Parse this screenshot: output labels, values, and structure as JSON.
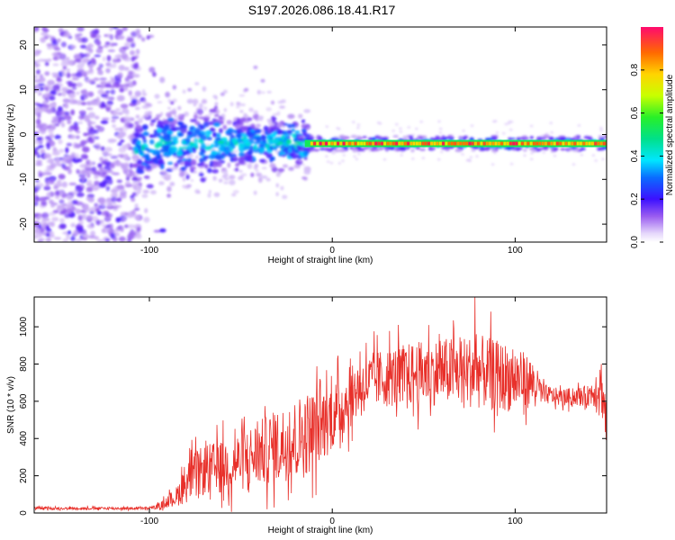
{
  "title": "S197.2026.086.18.41.R17",
  "colors": {
    "snr_line": "#e8302a",
    "axis": "#000000",
    "spectrogram_low": "#d9c6f6",
    "spectrogram_high": "#ff0a5a"
  },
  "chart_data": [
    {
      "type": "heatmap",
      "title": "S197.2026.086.18.41.R17",
      "xlabel": "Height of straight line (km)",
      "ylabel": "Frequency (Hz)",
      "xlim": [
        -163,
        150
      ],
      "ylim": [
        -24,
        24
      ],
      "xticks": [
        -100,
        0,
        100
      ],
      "yticks": [
        -20,
        -10,
        0,
        10,
        20
      ],
      "colorbar": {
        "label": "Normalized spectral amplitude",
        "range": [
          0,
          1
        ],
        "ticks": [
          "0.0",
          "0.2",
          "0.4",
          "0.6",
          "0.8"
        ],
        "tick_values": [
          0.0,
          0.2,
          0.4,
          0.6,
          0.8
        ]
      },
      "description_regions": [
        {
          "x": [
            -163,
            -105
          ],
          "freq": [
            -24,
            24
          ],
          "amplitude": 0.15,
          "pattern": "scattered noise"
        },
        {
          "x": [
            -105,
            -15
          ],
          "freq": [
            -12,
            7
          ],
          "amplitude": 0.4,
          "pattern": "broadening tone near -2 Hz"
        },
        {
          "x": [
            -15,
            150
          ],
          "freq": [
            -2.5,
            -1.5
          ],
          "amplitude": 0.95,
          "pattern": "narrow carrier tone"
        }
      ],
      "carrier_line_hz": -2
    },
    {
      "type": "line",
      "xlabel": "Height of straight line (km)",
      "ylabel": "SNR (10 * v/v)",
      "xlim": [
        -163,
        150
      ],
      "ylim": [
        0,
        1160
      ],
      "xticks": [
        -100,
        0,
        100
      ],
      "yticks": [
        0,
        200,
        400,
        600,
        800,
        1000
      ],
      "series": [
        {
          "name": "SNR",
          "envelope_x": [
            -163,
            -100,
            -95,
            -85,
            -80,
            -70,
            -60,
            -50,
            -40,
            -30,
            -20,
            -15,
            -10,
            -5,
            0,
            10,
            15,
            25,
            40,
            60,
            80,
            100,
            110,
            115,
            125,
            140,
            147,
            150
          ],
          "envelope_y": [
            25,
            25,
            35,
            90,
            170,
            230,
            250,
            280,
            320,
            360,
            400,
            420,
            450,
            480,
            520,
            620,
            680,
            720,
            740,
            760,
            760,
            720,
            700,
            640,
            620,
            630,
            700,
            480
          ],
          "spread_y": [
            8,
            8,
            15,
            60,
            130,
            150,
            160,
            180,
            200,
            220,
            240,
            260,
            240,
            220,
            200,
            180,
            170,
            170,
            190,
            200,
            220,
            200,
            140,
            60,
            50,
            60,
            160,
            200
          ],
          "peak_y": 1160,
          "peak_x": 78
        }
      ]
    }
  ]
}
